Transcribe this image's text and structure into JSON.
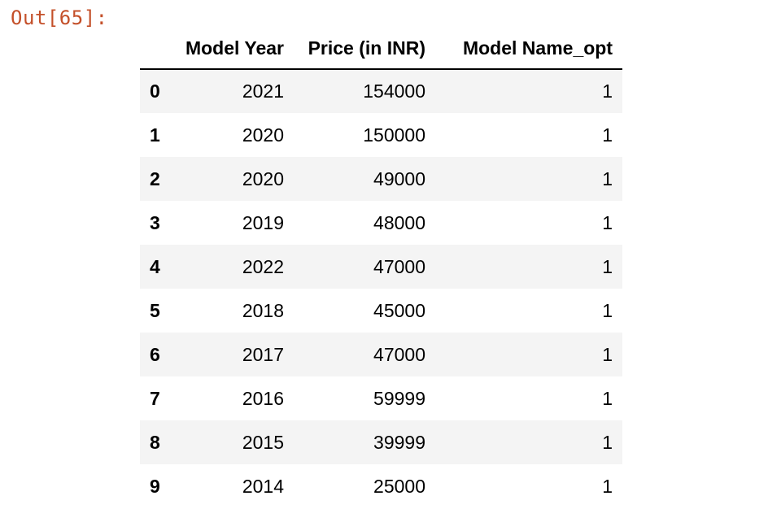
{
  "cell": {
    "output_prompt": "Out[65]:"
  },
  "dataframe": {
    "columns": [
      "Model Year",
      "Price (in INR)",
      "Model Name_opt"
    ],
    "rows": [
      {
        "index": "0",
        "model_year": "2021",
        "price": "154000",
        "model_name_opt": "1"
      },
      {
        "index": "1",
        "model_year": "2020",
        "price": "150000",
        "model_name_opt": "1"
      },
      {
        "index": "2",
        "model_year": "2020",
        "price": "49000",
        "model_name_opt": "1"
      },
      {
        "index": "3",
        "model_year": "2019",
        "price": "48000",
        "model_name_opt": "1"
      },
      {
        "index": "4",
        "model_year": "2022",
        "price": "47000",
        "model_name_opt": "1"
      },
      {
        "index": "5",
        "model_year": "2018",
        "price": "45000",
        "model_name_opt": "1"
      },
      {
        "index": "6",
        "model_year": "2017",
        "price": "47000",
        "model_name_opt": "1"
      },
      {
        "index": "7",
        "model_year": "2016",
        "price": "59999",
        "model_name_opt": "1"
      },
      {
        "index": "8",
        "model_year": "2015",
        "price": "39999",
        "model_name_opt": "1"
      },
      {
        "index": "9",
        "model_year": "2014",
        "price": "25000",
        "model_name_opt": "1"
      }
    ]
  },
  "colors": {
    "prompt": "#c4502a",
    "row_stripe": "#f4f4f4"
  }
}
